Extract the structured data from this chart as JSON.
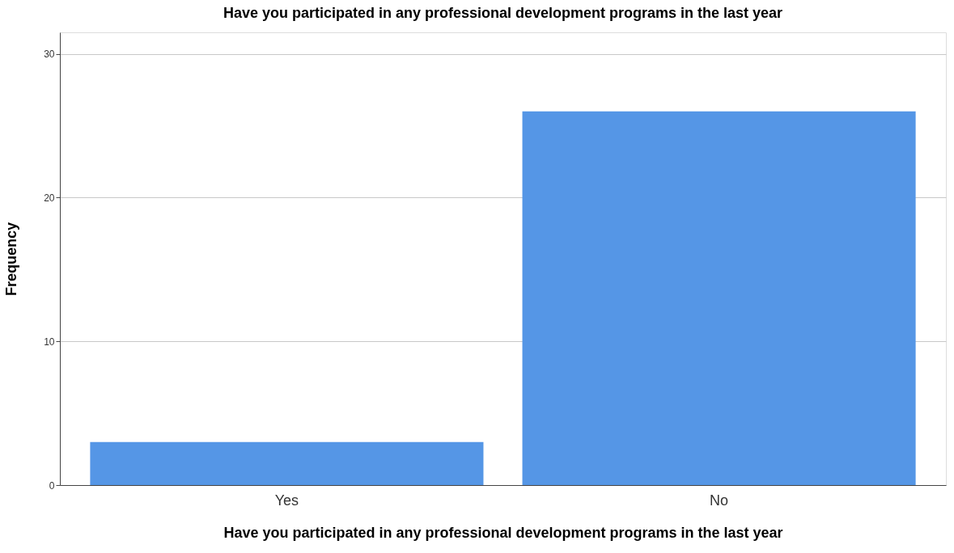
{
  "chart_data": {
    "type": "bar",
    "title": "Have you participated in any professional development programs in the last year",
    "xlabel": "Have you participated in any professional development programs in the last year",
    "ylabel": "Frequency",
    "categories": [
      "Yes",
      "No"
    ],
    "values": [
      3,
      26
    ],
    "color": "#5596e6",
    "ylim": [
      0,
      31.5
    ],
    "yticks": [
      0,
      10,
      20,
      30
    ],
    "grid": "y"
  }
}
